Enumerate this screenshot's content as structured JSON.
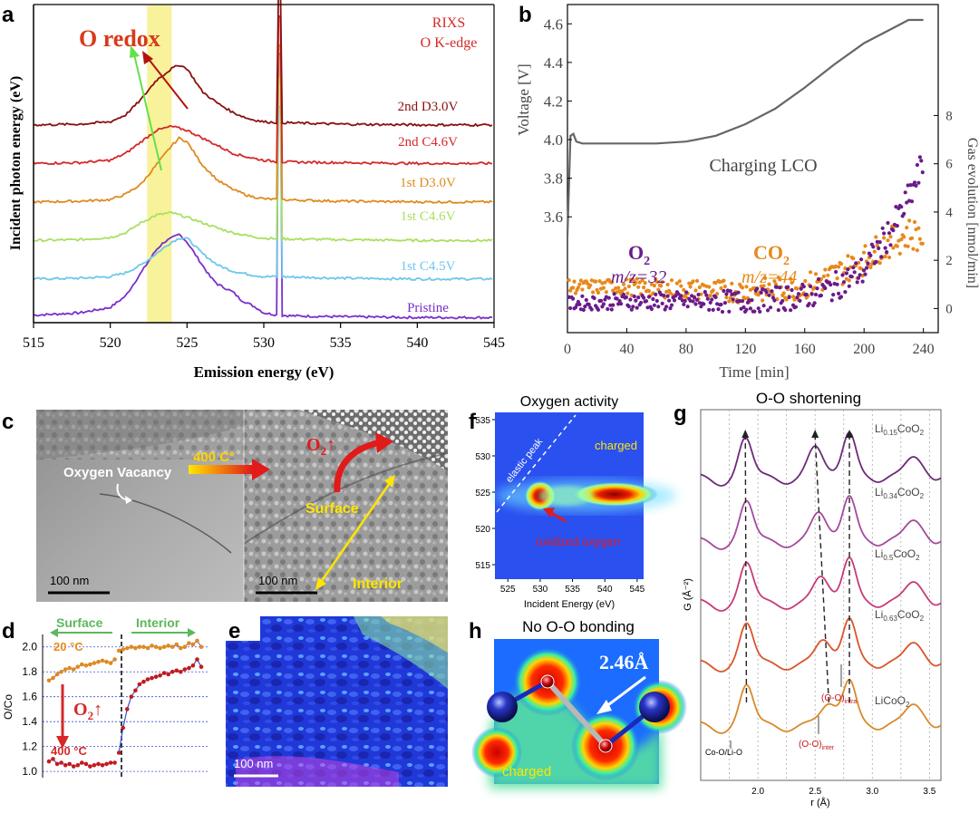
{
  "panels": {
    "a": "a",
    "b": "b",
    "c": "c",
    "d": "d",
    "e": "e",
    "f": "f",
    "g": "g",
    "h": "h"
  },
  "colors": {
    "pristine": "#7b2fc9",
    "c45": "#6fc6ec",
    "c46": "#a8e060",
    "d30": "#e08a1e",
    "c46b": "#d62828",
    "d30b": "#8a1010",
    "o2": "#6a1b8a",
    "co2": "#e8891a",
    "highlight": "#f7f08a"
  },
  "panel_a": {
    "annotation": "O redox",
    "inset_line1": "RIXS",
    "inset_line2": "O K-edge",
    "scale_marker_x": 531
  },
  "panel_b": {
    "annotation": "Charging  LCO",
    "o2_label": "O",
    "o2_sub": "2",
    "o2_mz": "m/z=32",
    "co2_label": "CO",
    "co2_sub": "2",
    "co2_mz": "m/z=44"
  },
  "panel_c": {
    "label_vacancy": "Oxygen Vacancy",
    "label_temp": "400 C°",
    "label_o2": "O",
    "label_o2_sub": "2",
    "label_surface": "Surface",
    "label_interior": "Interior",
    "scale_left": "100 nm",
    "scale_right": "100 nm"
  },
  "panel_d": {
    "surface": "Surface",
    "interior": "Interior",
    "temp_top": "20 °C",
    "temp_bottom": "400 °C",
    "o2": "O",
    "o2_sub": "2"
  },
  "panel_e": {
    "scale": "100 nm"
  },
  "panel_f": {
    "title": "Oxygen activity",
    "elastic": "elastic peak",
    "charged": "charged",
    "oxidized": "oxidized oxygen"
  },
  "panel_g": {
    "title": "O-O shortening",
    "ann_co": "Co-O/Li-O",
    "ann_inter": "(O-O)",
    "ann_inter_sub": "inter",
    "ann_intra": "(O-O)",
    "ann_intra_sub": "intra"
  },
  "panel_h": {
    "title": "No O-O bonding",
    "distance": "2.46Å",
    "charged": "charged"
  },
  "chart_data": [
    {
      "id": "a",
      "type": "line",
      "xlabel": "Emission energy (eV)",
      "ylabel": "Incident photon energy (eV)",
      "xlim": [
        515,
        545
      ],
      "xticks": [
        515,
        520,
        525,
        530,
        535,
        540,
        545
      ],
      "series": [
        {
          "name": "Pristine",
          "color": "#7b2fc9",
          "offset": 0,
          "x": [
            515,
            518,
            520,
            521,
            522,
            523,
            523.5,
            524,
            524.5,
            525,
            525.5,
            526,
            526.5,
            527,
            527.5,
            528,
            528.5,
            529,
            529.5,
            530,
            531,
            532,
            535,
            540,
            545
          ],
          "y": [
            0.05,
            0.08,
            0.15,
            0.3,
            0.6,
            0.9,
            1.0,
            1.05,
            1.1,
            1.0,
            0.85,
            0.7,
            0.55,
            0.45,
            0.4,
            0.35,
            0.25,
            0.2,
            0.15,
            0.08,
            0.05,
            0.04,
            0.03,
            0.02,
            0.02
          ]
        },
        {
          "name": "1st C4.5V",
          "color": "#6fc6ec",
          "offset": 1,
          "x": [
            515,
            518,
            520,
            521,
            522,
            523,
            524,
            524.5,
            525,
            525.5,
            526,
            527,
            528,
            529,
            530,
            531,
            535,
            540,
            545
          ],
          "y": [
            0.02,
            0.03,
            0.05,
            0.1,
            0.2,
            0.35,
            0.5,
            0.55,
            0.55,
            0.45,
            0.35,
            0.2,
            0.12,
            0.08,
            0.05,
            0.05,
            0.03,
            0.02,
            0.02
          ]
        },
        {
          "name": "1st C4.6V",
          "color": "#a8e060",
          "offset": 2,
          "x": [
            515,
            518,
            520,
            521,
            522,
            523,
            524,
            525,
            526,
            527,
            528,
            529,
            530,
            531,
            535,
            540,
            545
          ],
          "y": [
            0.02,
            0.03,
            0.06,
            0.12,
            0.25,
            0.35,
            0.38,
            0.32,
            0.25,
            0.18,
            0.12,
            0.08,
            0.05,
            0.04,
            0.03,
            0.02,
            0.02
          ]
        },
        {
          "name": "1st D3.0V",
          "color": "#e08a1e",
          "offset": 3,
          "x": [
            515,
            518,
            520,
            521,
            522,
            523,
            524,
            524.5,
            525,
            525.5,
            526,
            527,
            528,
            529,
            530,
            531,
            535,
            540,
            545
          ],
          "y": [
            0.02,
            0.03,
            0.05,
            0.12,
            0.25,
            0.5,
            0.75,
            0.85,
            0.8,
            0.65,
            0.5,
            0.3,
            0.18,
            0.1,
            0.06,
            0.05,
            0.03,
            0.02,
            0.02
          ]
        },
        {
          "name": "2nd C4.6V",
          "color": "#d62828",
          "offset": 4,
          "x": [
            515,
            518,
            520,
            521,
            522,
            523,
            524,
            525,
            526,
            527,
            528,
            529,
            530,
            531,
            535,
            540,
            545
          ],
          "y": [
            0.02,
            0.03,
            0.06,
            0.15,
            0.3,
            0.45,
            0.5,
            0.45,
            0.35,
            0.25,
            0.15,
            0.1,
            0.06,
            0.04,
            0.03,
            0.02,
            0.02
          ]
        },
        {
          "name": "2nd D3.0V",
          "color": "#8a1010",
          "offset": 5,
          "x": [
            515,
            518,
            520,
            521,
            522,
            523,
            524,
            524.5,
            525,
            525.5,
            526,
            527,
            528,
            529,
            530,
            531,
            535,
            540,
            545
          ],
          "y": [
            0.02,
            0.03,
            0.06,
            0.15,
            0.35,
            0.6,
            0.75,
            0.8,
            0.75,
            0.6,
            0.45,
            0.3,
            0.18,
            0.1,
            0.06,
            0.05,
            0.03,
            0.02,
            0.02
          ]
        }
      ],
      "highlight_band": [
        522.4,
        524.0
      ],
      "grid": false
    },
    {
      "id": "b",
      "type": "line+scatter",
      "xlabel": "Time [min]",
      "ylabel": "Voltage [V]",
      "y2label": "Gas evolution [nmol/min]",
      "xlim": [
        0,
        250
      ],
      "xticks": [
        0,
        40,
        80,
        120,
        160,
        200,
        240
      ],
      "ylim": [
        3.0,
        4.7
      ],
      "yticks": [
        3.6,
        3.8,
        4.0,
        4.2,
        4.4,
        4.6
      ],
      "y2lim": [
        -1,
        12.6
      ],
      "y2ticks": [
        0,
        2,
        4,
        6,
        8
      ],
      "voltage": {
        "x": [
          0,
          2,
          4,
          6,
          10,
          20,
          40,
          60,
          80,
          100,
          120,
          140,
          160,
          180,
          200,
          220,
          230,
          240
        ],
        "y": [
          3.5,
          4.02,
          4.03,
          3.99,
          3.98,
          3.98,
          3.98,
          3.98,
          3.99,
          4.02,
          4.08,
          4.16,
          4.27,
          4.39,
          4.5,
          4.58,
          4.62,
          4.62
        ]
      },
      "series": [
        {
          "name": "O2",
          "color": "#6a1b8a",
          "x": [
            0,
            40,
            80,
            120,
            160,
            180,
            200,
            210,
            220,
            230,
            240
          ],
          "y": [
            0.2,
            0.3,
            0.3,
            0.3,
            0.5,
            0.9,
            1.6,
            2.5,
            3.4,
            4.5,
            6.0
          ]
        },
        {
          "name": "CO2",
          "color": "#e8891a",
          "x": [
            0,
            40,
            80,
            120,
            160,
            180,
            200,
            210,
            220,
            230,
            240
          ],
          "y": [
            0.9,
            0.9,
            0.8,
            0.7,
            0.9,
            1.4,
            2.0,
            2.5,
            2.8,
            3.1,
            3.0
          ]
        }
      ],
      "grid": false
    },
    {
      "id": "d",
      "type": "line",
      "ylabel": "O/Co",
      "ylim": [
        0.95,
        2.1
      ],
      "yticks": [
        1.0,
        1.2,
        1.4,
        1.6,
        1.8,
        2.0
      ],
      "series": [
        {
          "name": "20 °C",
          "color": "#e08a1e",
          "values": [
            1.73,
            1.75,
            1.78,
            1.8,
            1.82,
            1.83,
            1.82,
            1.84,
            1.86,
            1.85,
            1.86,
            1.87,
            1.88,
            1.89,
            1.88,
            1.87,
            1.9,
            1.97,
            1.98,
            1.99,
            2.0,
            1.99,
            2.0,
            2.0,
            1.99,
            2.01,
            2.0,
            1.99,
            2.0,
            2.01,
            2.0,
            2.02,
            1.99,
            2.0,
            2.03,
            2.02,
            2.05,
            2.0
          ]
        },
        {
          "name": "400 °C",
          "color": "#c41a1a",
          "values": [
            1.08,
            1.1,
            1.06,
            1.07,
            1.05,
            1.06,
            1.04,
            1.05,
            1.07,
            1.06,
            1.04,
            1.05,
            1.06,
            1.05,
            1.06,
            1.07,
            1.07,
            1.15,
            1.35,
            1.5,
            1.6,
            1.65,
            1.7,
            1.72,
            1.74,
            1.75,
            1.76,
            1.77,
            1.79,
            1.78,
            1.8,
            1.81,
            1.8,
            1.82,
            1.83,
            1.85,
            1.9,
            1.84
          ]
        }
      ],
      "divider_index": 17,
      "grid": true
    },
    {
      "id": "f",
      "type": "heatmap",
      "title": "Oxygen activity",
      "xlabel": "Incident Energy (eV)",
      "xlim": [
        523,
        546
      ],
      "xticks": [
        525,
        530,
        535,
        540,
        545
      ],
      "ylim": [
        513,
        536
      ],
      "yticks": [
        515,
        520,
        525,
        530,
        535
      ]
    },
    {
      "id": "g",
      "type": "line",
      "title": "O-O shortening",
      "xlabel": "r (Å)",
      "ylabel": "G (Å⁻²)",
      "xlim": [
        1.5,
        3.6
      ],
      "xticks": [
        2.0,
        2.5,
        3.0,
        3.5
      ],
      "series": [
        {
          "name": "LiCoO2",
          "label_main": "LiCoO",
          "label_sub1": "",
          "label_sub2": "2",
          "color": "#d9892a",
          "offset": 0
        },
        {
          "name": "Li0.63CoO2",
          "label_main": "Li",
          "label_sub1": "0.63",
          "label_mid": "CoO",
          "label_sub2": "2",
          "color": "#d9552a",
          "offset": 1
        },
        {
          "name": "Li0.5CoO2",
          "label_main": "Li",
          "label_sub1": "0.5",
          "label_mid": "CoO",
          "label_sub2": "2",
          "color": "#c83a7a",
          "offset": 2
        },
        {
          "name": "Li0.34CoO2",
          "label_main": "Li",
          "label_sub1": "0.34",
          "label_mid": "CoO",
          "label_sub2": "2",
          "color": "#a34a9c",
          "offset": 3
        },
        {
          "name": "Li0.15CoO2",
          "label_main": "Li",
          "label_sub1": "0.15",
          "label_mid": "CoO",
          "label_sub2": "2",
          "color": "#6e2a7a",
          "offset": 4
        }
      ],
      "peak_positions": {
        "co_o": [
          1.9,
          1.9,
          1.9,
          1.9,
          1.89
        ],
        "o_o_inter": [
          2.62,
          2.57,
          2.55,
          2.53,
          2.5
        ],
        "o_o_intra": [
          2.8,
          2.8,
          2.8,
          2.8,
          2.8
        ]
      },
      "grid": true
    }
  ]
}
